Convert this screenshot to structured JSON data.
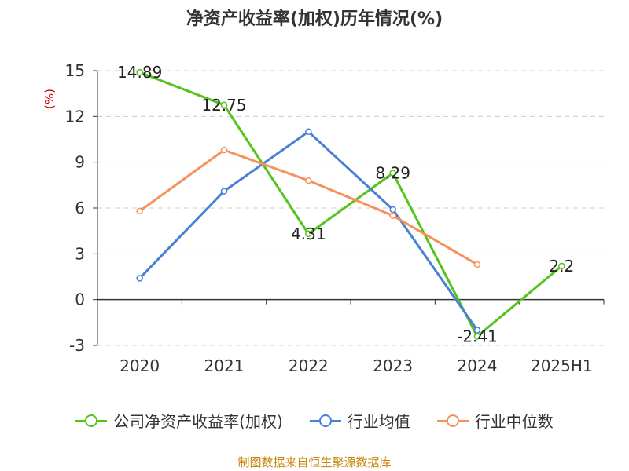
{
  "chart_data": {
    "type": "line",
    "title": "净资产收益率(加权)历年情况(%)",
    "ylabel": "(%)",
    "categories": [
      "2020",
      "2021",
      "2022",
      "2023",
      "2024",
      "2025H1"
    ],
    "ylim": [
      -3,
      15
    ],
    "yticks": [
      -3,
      0,
      3,
      6,
      9,
      12,
      15
    ],
    "grid": true,
    "legend_position": "bottom",
    "series": [
      {
        "name": "公司净资产收益率(加权)",
        "color": "#52c41a",
        "values": [
          14.89,
          12.75,
          4.31,
          8.29,
          -2.41,
          2.2
        ],
        "labels": [
          "14.89",
          "12.75",
          "4.31",
          "8.29",
          "-2.41",
          "2.2"
        ]
      },
      {
        "name": "行业均值",
        "color": "#4a7fd6",
        "values": [
          1.4,
          7.1,
          11.0,
          5.9,
          -2.0,
          null
        ]
      },
      {
        "name": "行业中位数",
        "color": "#f7905a",
        "values": [
          5.8,
          9.8,
          7.8,
          5.5,
          2.3,
          null
        ]
      }
    ]
  },
  "source_text": "制图数据来自恒生聚源数据库"
}
